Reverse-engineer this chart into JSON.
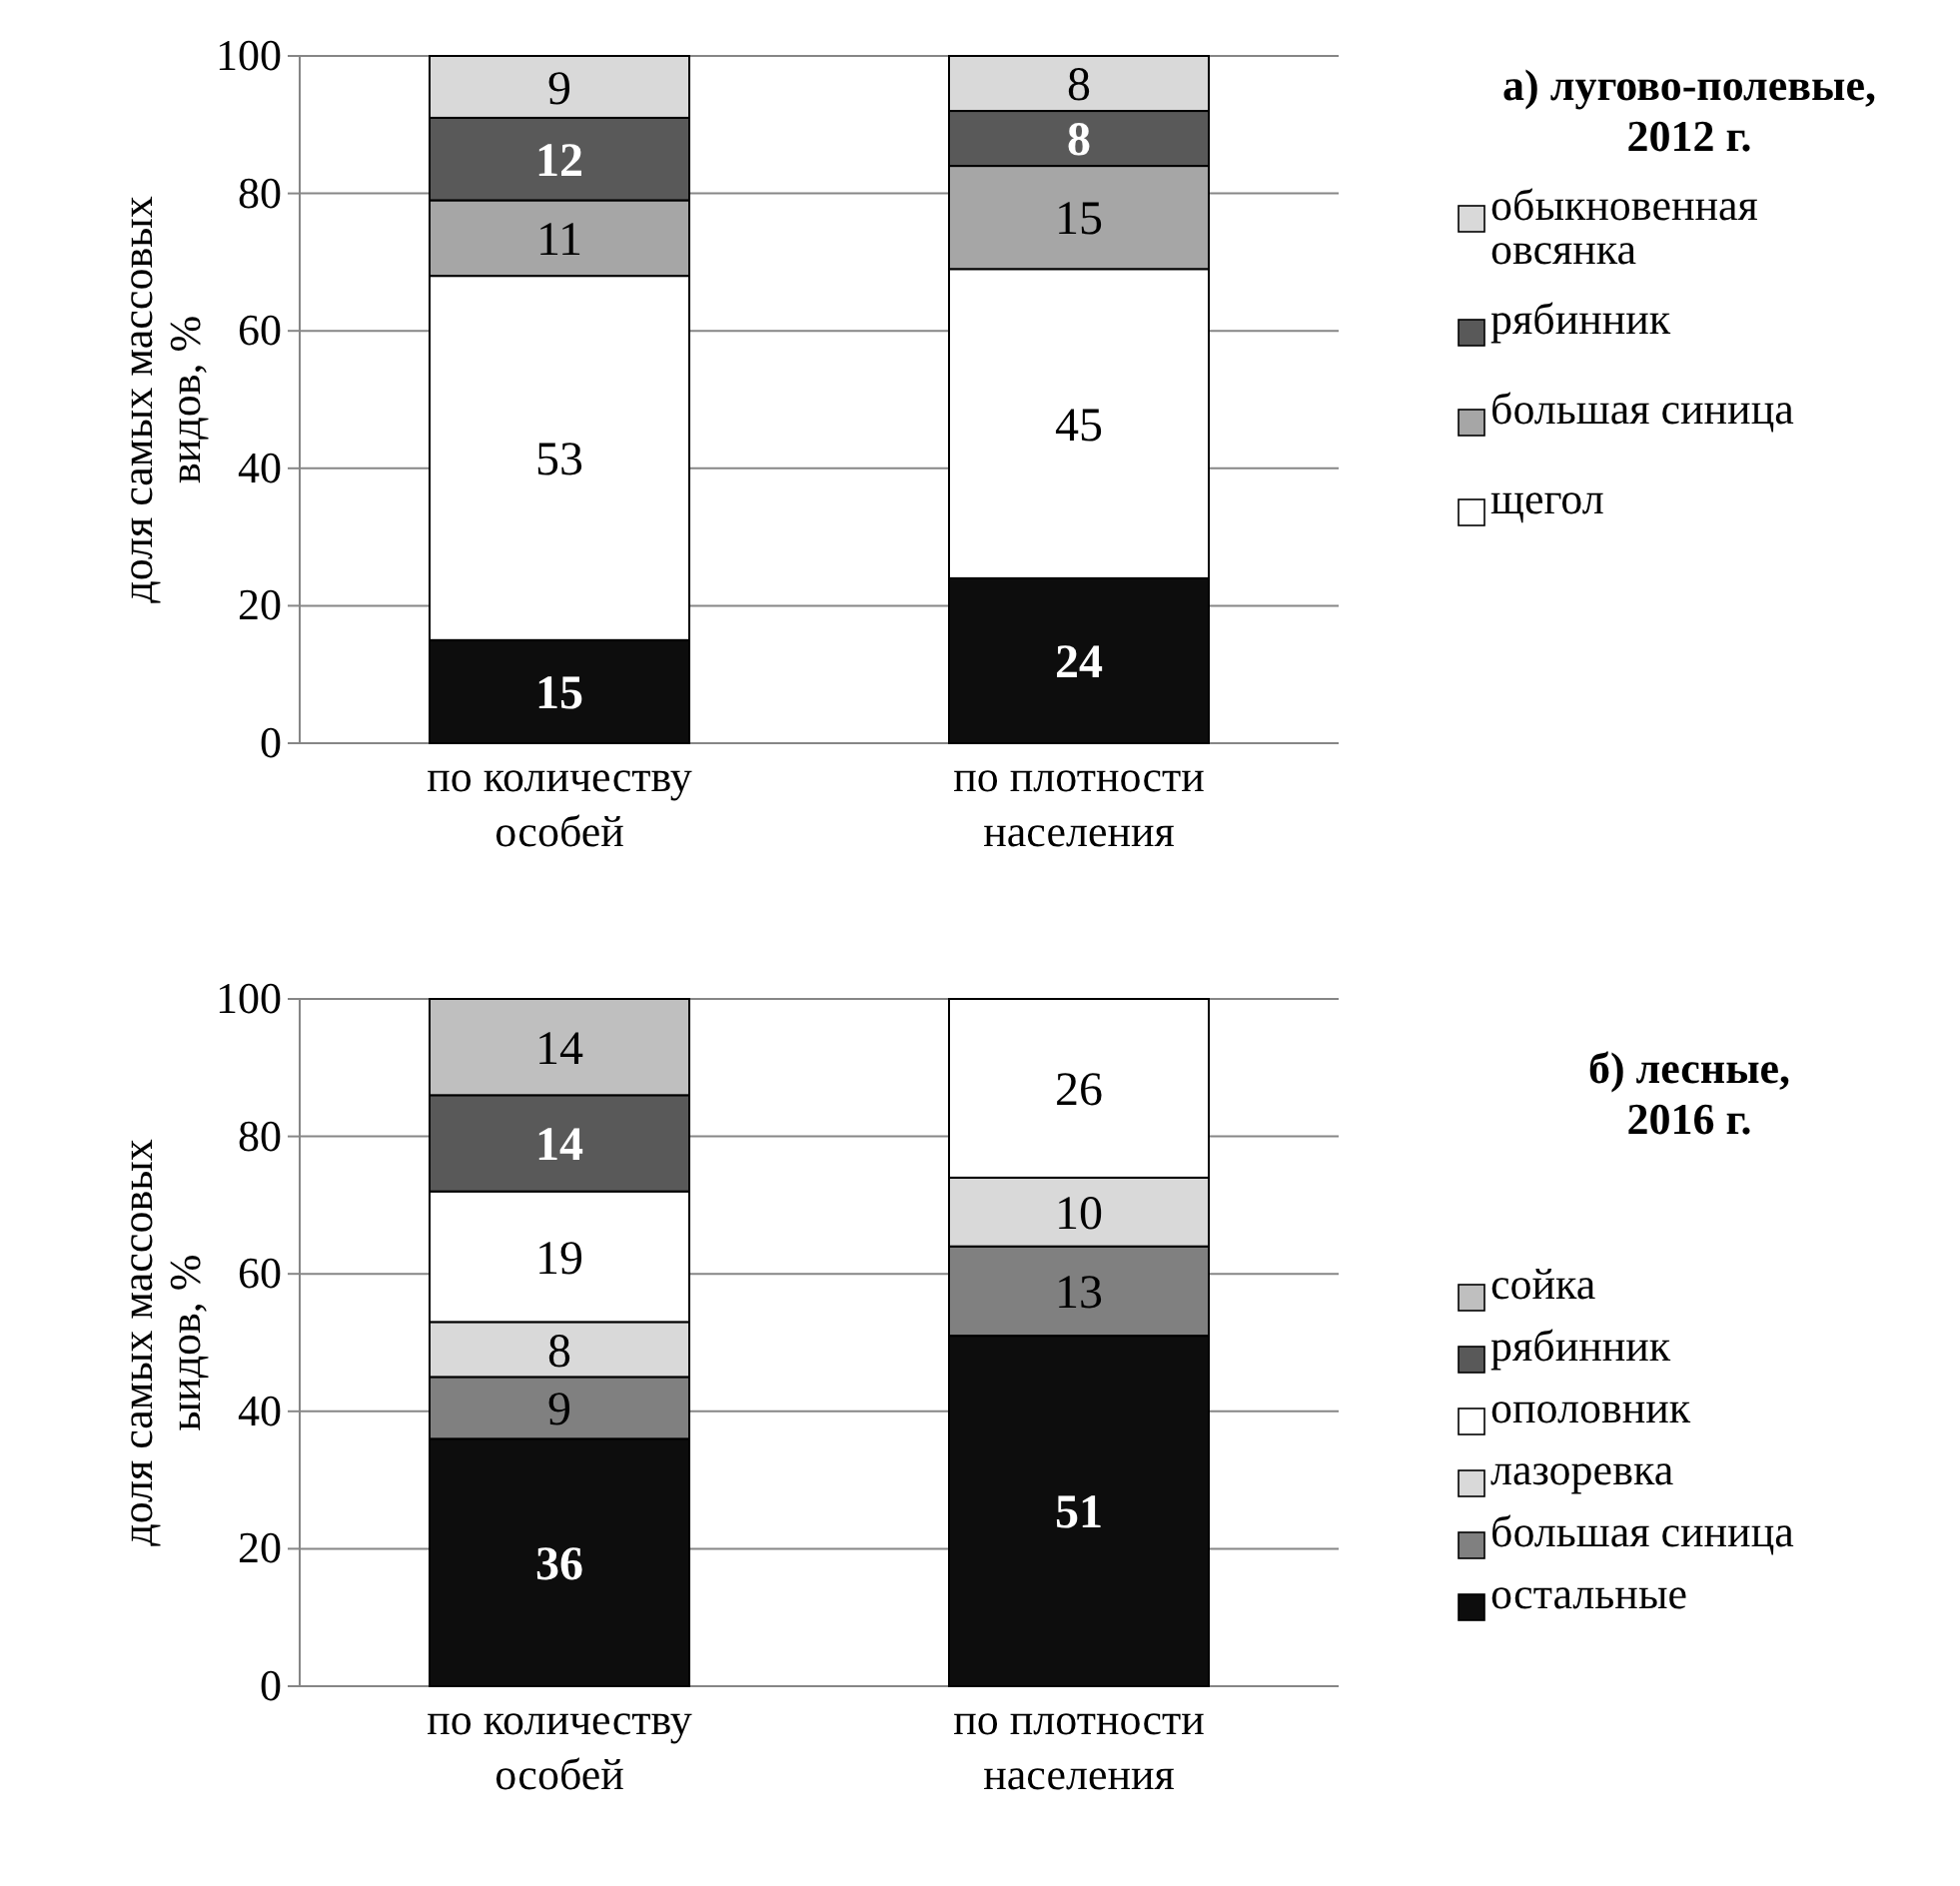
{
  "chart_data": [
    {
      "type": "bar",
      "stacked": true,
      "legend_title": "а) лугово-полевые, 2012 г.",
      "ylabel": "доля самых массовых видов, %",
      "categories": [
        "по количеству особей",
        "по плотности населения"
      ],
      "ylim": [
        0,
        100
      ],
      "yticks": [
        0,
        20,
        40,
        60,
        80,
        100
      ],
      "grid": "y",
      "legend": "right",
      "data_labels": true,
      "series": [
        {
          "color": "#0d0d0d",
          "values": [
            15,
            24
          ]
        },
        {
          "name": "щегол",
          "color": "#ffffff",
          "values": [
            53,
            45
          ]
        },
        {
          "name": "большая синица",
          "color": "#a6a6a6",
          "values": [
            11,
            15
          ]
        },
        {
          "name": "рябинник",
          "color": "#595959",
          "values": [
            12,
            8
          ]
        },
        {
          "name": "обыкновенная овсянка",
          "color": "#d9d9d9",
          "values": [
            9,
            8
          ]
        }
      ]
    },
    {
      "type": "bar",
      "stacked": true,
      "legend_title": "б) лесные, 2016 г.",
      "ylabel": "доля самых массовых ыидов, %",
      "categories": [
        "по количеству особей",
        "по плотности населения"
      ],
      "ylim": [
        0,
        100
      ],
      "yticks": [
        0,
        20,
        40,
        60,
        80,
        100
      ],
      "grid": "y",
      "legend": "right",
      "data_labels": true,
      "series": [
        {
          "name": "остальные",
          "color": "#0d0d0d",
          "values": [
            36,
            51
          ]
        },
        {
          "name": "большая синица",
          "color": "#808080",
          "values": [
            9,
            13
          ]
        },
        {
          "name": "лазоревка",
          "color": "#d9d9d9",
          "values": [
            8,
            10
          ]
        },
        {
          "name": "ополовник",
          "color": "#ffffff",
          "values": [
            19,
            26
          ]
        },
        {
          "name": "рябинник",
          "color": "#595959",
          "values": [
            14,
            null
          ]
        },
        {
          "name": "сойка",
          "color": "#bfbfbf",
          "values": [
            14,
            null
          ]
        }
      ]
    }
  ]
}
